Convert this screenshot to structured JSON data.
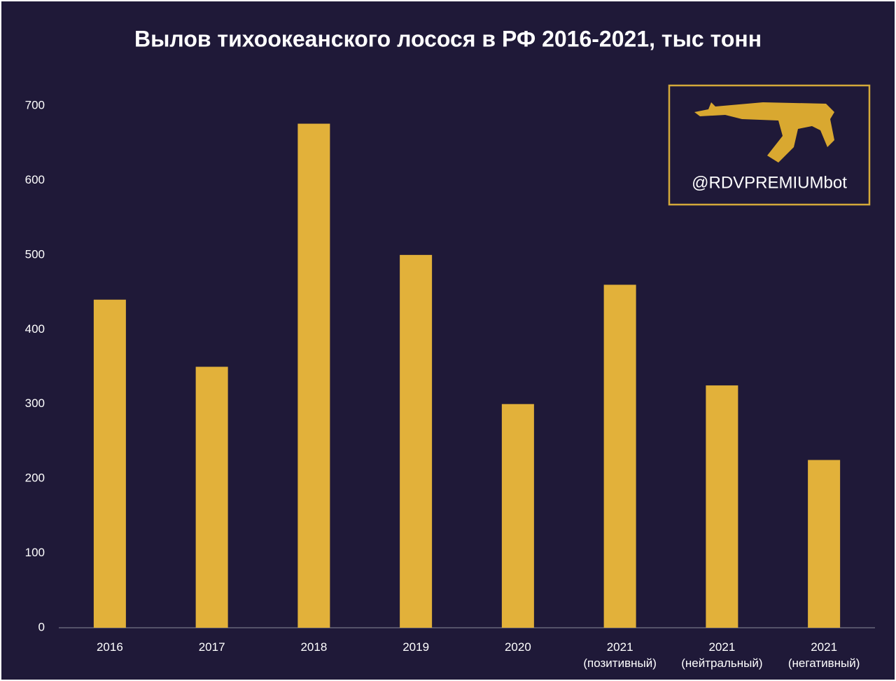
{
  "chart_data": {
    "type": "bar",
    "title": "Вылов тихоокеанского лосося в РФ 2016-2021, тыс тонн",
    "categories": [
      "2016",
      "2017",
      "2018",
      "2019",
      "2020",
      "2021 (позитивный)",
      "2021 (нейтральный)",
      "2021 (негативный)"
    ],
    "values": [
      440,
      350,
      676,
      500,
      300,
      460,
      325,
      225
    ],
    "color": "#e2b13a",
    "ylim": [
      0,
      700
    ],
    "yticks": [
      0,
      100,
      200,
      300,
      400,
      500,
      600,
      700
    ],
    "grid": false
  },
  "watermark": "@RDVPREMIUMbot"
}
